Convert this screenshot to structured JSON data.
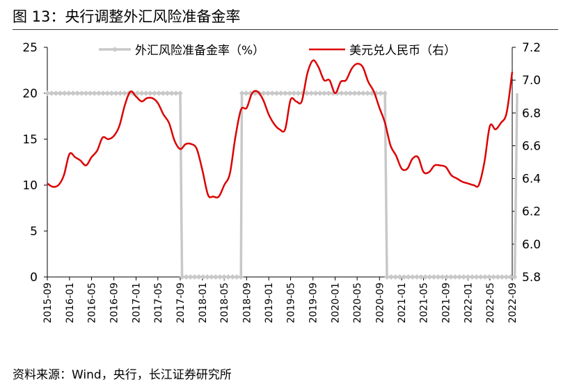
{
  "title": "图  13：央行调整外汇风险准备金率",
  "source": "资料来源：Wind，央行，长江证券研究所",
  "colors": {
    "rrr": "#c8c8c8",
    "usdcny": "#dc0000",
    "axis": "#000000"
  },
  "chart_data": {
    "type": "line",
    "title": "图  13：央行调整外汇风险准备金率",
    "legend": "top",
    "grid": false,
    "x_labels": [
      "2015-09",
      "2016-01",
      "2016-05",
      "2016-09",
      "2017-01",
      "2017-05",
      "2017-09",
      "2018-01",
      "2018-05",
      "2018-09",
      "2019-01",
      "2019-05",
      "2019-09",
      "2020-01",
      "2020-05",
      "2020-09",
      "2021-01",
      "2021-05",
      "2021-09",
      "2022-01",
      "2022-05",
      "2022-09"
    ],
    "y_left": {
      "min": 0,
      "max": 25,
      "ticks": [
        "0",
        "5",
        "10",
        "15",
        "20",
        "25"
      ]
    },
    "y_right": {
      "min": 5.8,
      "max": 7.2,
      "ticks": [
        "5.8",
        "6.0",
        "6.2",
        "6.4",
        "6.6",
        "6.8",
        "7.0",
        "7.2"
      ]
    },
    "series": [
      {
        "name": "外汇风险准备金率（%）",
        "axis": "left",
        "marker": "diamond",
        "points": [
          [
            "2015-09-01",
            20
          ],
          [
            "2017-09-01",
            20
          ],
          [
            "2017-09-11",
            0
          ],
          [
            "2018-08-01",
            0
          ],
          [
            "2018-08-06",
            20
          ],
          [
            "2020-10-01",
            20
          ],
          [
            "2020-10-12",
            0
          ],
          [
            "2022-09-15",
            0
          ],
          [
            "2022-09-28",
            20
          ]
        ]
      },
      {
        "name": "美元兑人民币（右）",
        "axis": "right",
        "points": [
          [
            "2015-09-01",
            6.37
          ],
          [
            "2015-10-01",
            6.35
          ],
          [
            "2015-11-01",
            6.36
          ],
          [
            "2015-12-01",
            6.42
          ],
          [
            "2016-01-01",
            6.55
          ],
          [
            "2016-02-01",
            6.53
          ],
          [
            "2016-03-01",
            6.51
          ],
          [
            "2016-04-01",
            6.48
          ],
          [
            "2016-05-01",
            6.53
          ],
          [
            "2016-06-01",
            6.57
          ],
          [
            "2016-07-01",
            6.65
          ],
          [
            "2016-08-01",
            6.64
          ],
          [
            "2016-09-01",
            6.66
          ],
          [
            "2016-10-01",
            6.72
          ],
          [
            "2016-11-01",
            6.85
          ],
          [
            "2016-12-01",
            6.93
          ],
          [
            "2017-01-01",
            6.9
          ],
          [
            "2017-02-01",
            6.87
          ],
          [
            "2017-03-01",
            6.89
          ],
          [
            "2017-04-01",
            6.89
          ],
          [
            "2017-05-01",
            6.86
          ],
          [
            "2017-06-01",
            6.79
          ],
          [
            "2017-07-01",
            6.74
          ],
          [
            "2017-08-01",
            6.63
          ],
          [
            "2017-09-01",
            6.58
          ],
          [
            "2017-10-01",
            6.61
          ],
          [
            "2017-11-01",
            6.61
          ],
          [
            "2017-12-01",
            6.58
          ],
          [
            "2018-01-01",
            6.45
          ],
          [
            "2018-02-01",
            6.3
          ],
          [
            "2018-03-01",
            6.29
          ],
          [
            "2018-04-01",
            6.29
          ],
          [
            "2018-05-01",
            6.36
          ],
          [
            "2018-06-01",
            6.43
          ],
          [
            "2018-07-01",
            6.65
          ],
          [
            "2018-08-01",
            6.82
          ],
          [
            "2018-09-01",
            6.83
          ],
          [
            "2018-10-01",
            6.92
          ],
          [
            "2018-11-01",
            6.93
          ],
          [
            "2018-12-01",
            6.88
          ],
          [
            "2019-01-01",
            6.79
          ],
          [
            "2019-02-01",
            6.73
          ],
          [
            "2019-03-01",
            6.7
          ],
          [
            "2019-04-01",
            6.7
          ],
          [
            "2019-05-01",
            6.88
          ],
          [
            "2019-06-01",
            6.87
          ],
          [
            "2019-07-01",
            6.87
          ],
          [
            "2019-08-01",
            7.04
          ],
          [
            "2019-09-01",
            7.12
          ],
          [
            "2019-10-01",
            7.08
          ],
          [
            "2019-11-01",
            7.0
          ],
          [
            "2019-12-01",
            7.0
          ],
          [
            "2020-01-01",
            6.92
          ],
          [
            "2020-02-01",
            6.99
          ],
          [
            "2020-03-01",
            7.0
          ],
          [
            "2020-04-01",
            7.07
          ],
          [
            "2020-05-01",
            7.1
          ],
          [
            "2020-06-01",
            7.08
          ],
          [
            "2020-07-01",
            6.99
          ],
          [
            "2020-08-01",
            6.93
          ],
          [
            "2020-09-01",
            6.83
          ],
          [
            "2020-10-01",
            6.74
          ],
          [
            "2020-11-01",
            6.6
          ],
          [
            "2020-12-01",
            6.54
          ],
          [
            "2021-01-01",
            6.46
          ],
          [
            "2021-02-01",
            6.46
          ],
          [
            "2021-03-01",
            6.52
          ],
          [
            "2021-04-01",
            6.53
          ],
          [
            "2021-05-01",
            6.44
          ],
          [
            "2021-06-01",
            6.44
          ],
          [
            "2021-07-01",
            6.48
          ],
          [
            "2021-08-01",
            6.48
          ],
          [
            "2021-09-01",
            6.47
          ],
          [
            "2021-10-01",
            6.42
          ],
          [
            "2021-11-01",
            6.4
          ],
          [
            "2021-12-01",
            6.38
          ],
          [
            "2022-01-01",
            6.37
          ],
          [
            "2022-02-01",
            6.36
          ],
          [
            "2022-03-01",
            6.36
          ],
          [
            "2022-04-01",
            6.5
          ],
          [
            "2022-05-01",
            6.72
          ],
          [
            "2022-06-01",
            6.7
          ],
          [
            "2022-07-01",
            6.74
          ],
          [
            "2022-08-01",
            6.8
          ],
          [
            "2022-09-01",
            7.05
          ]
        ]
      }
    ]
  }
}
